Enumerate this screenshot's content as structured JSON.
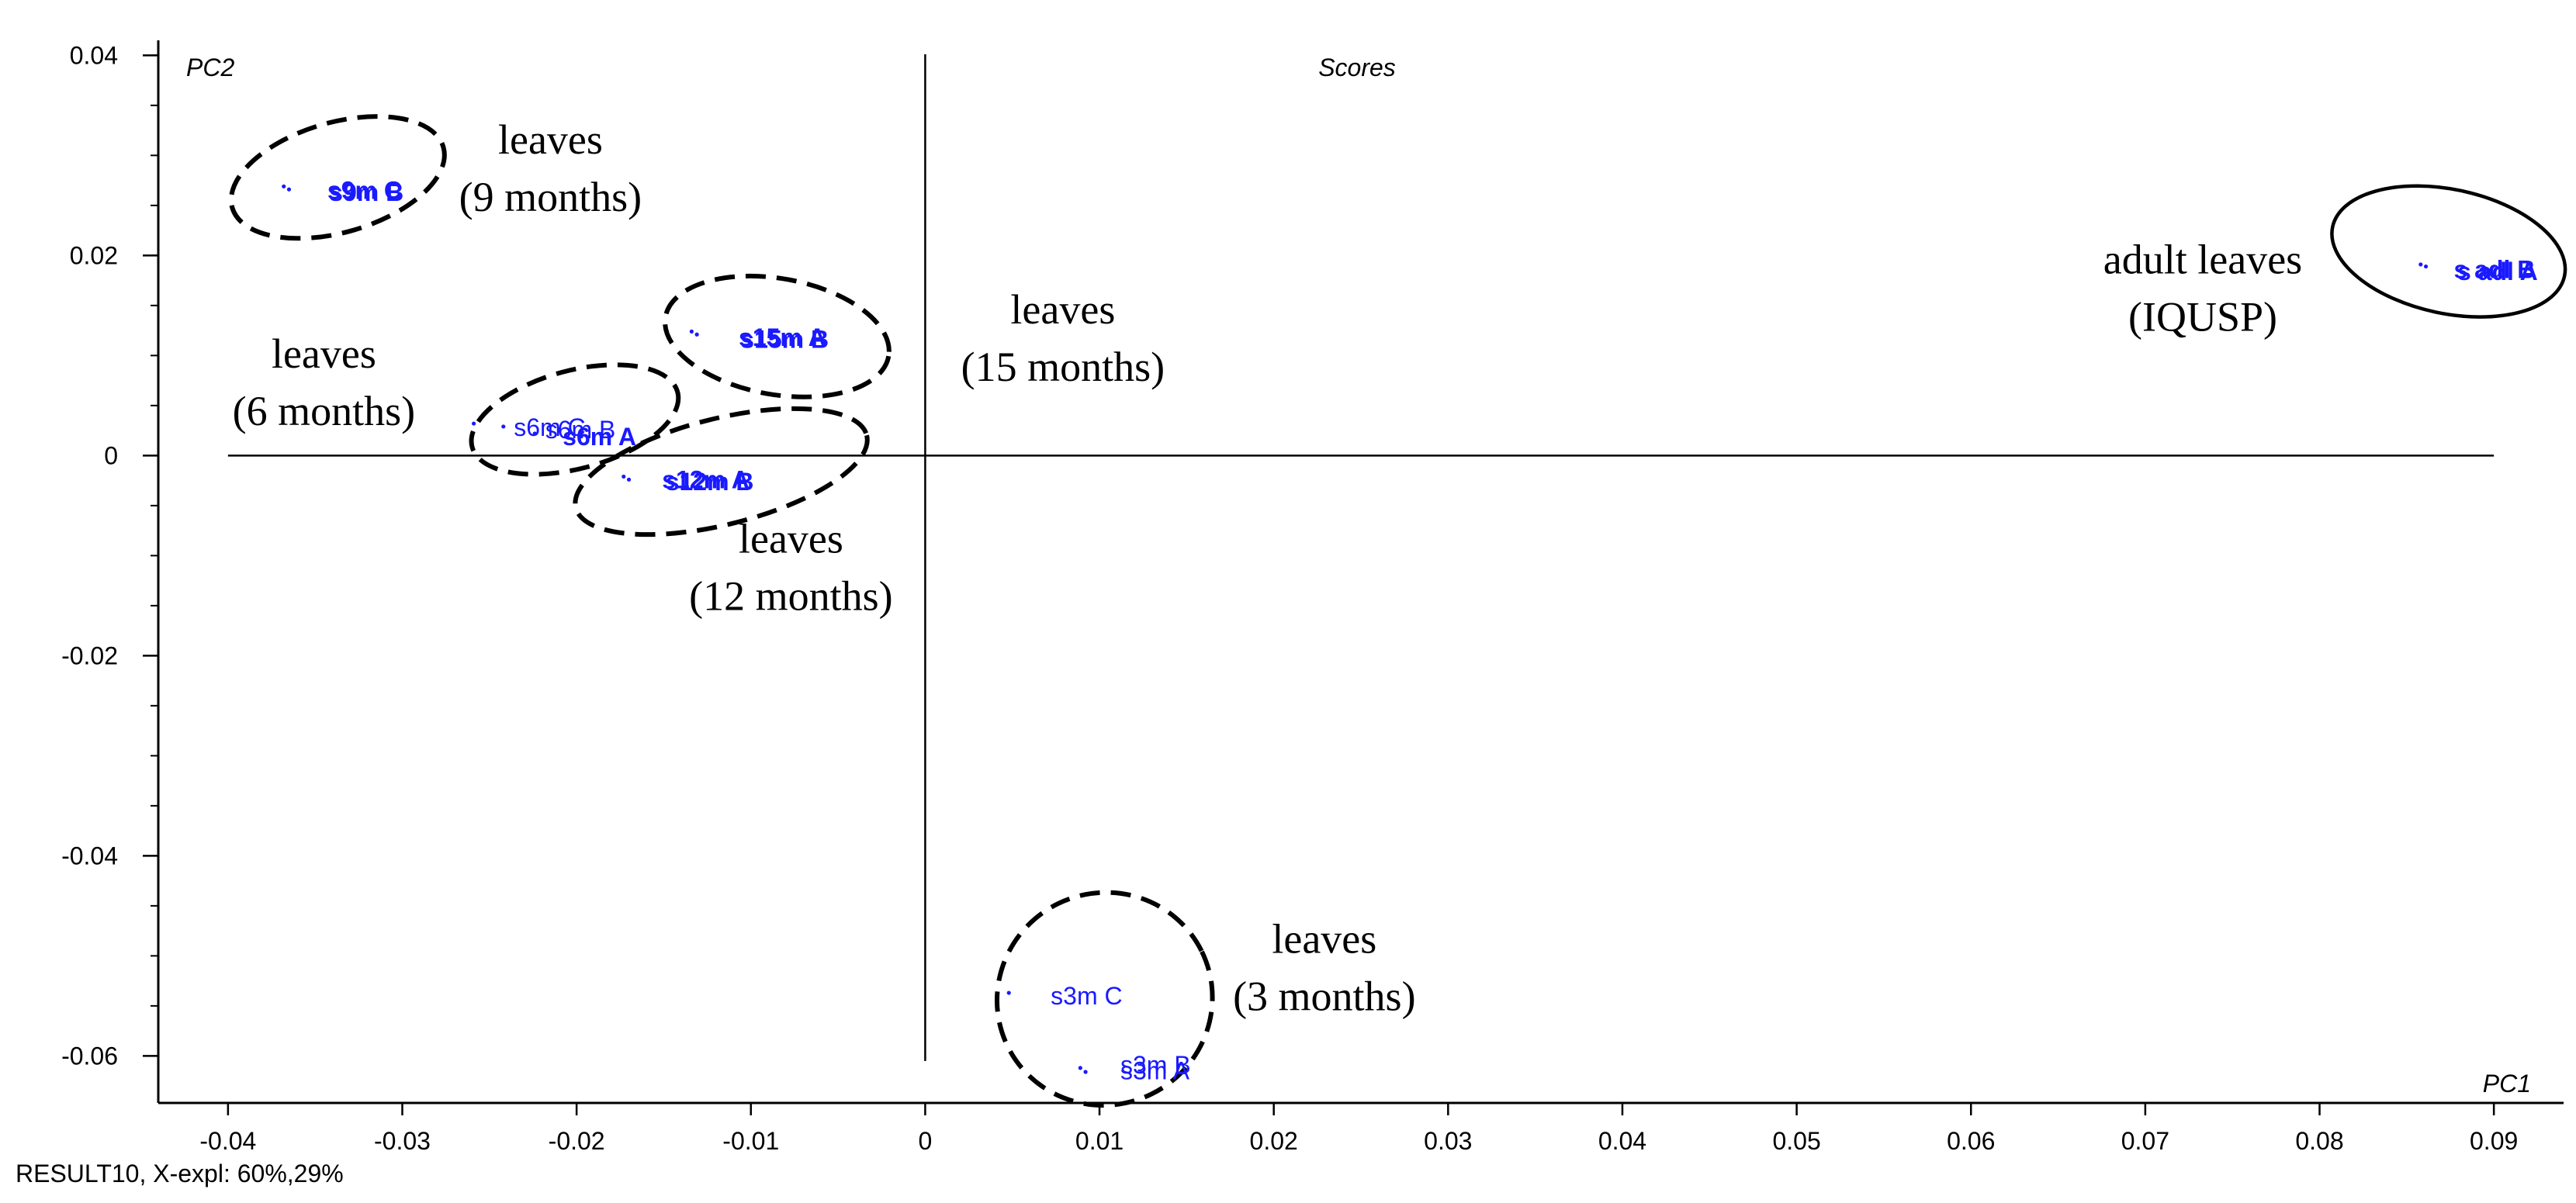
{
  "chart_data": {
    "type": "scatter",
    "title": "Scores",
    "xlabel": "PC1",
    "ylabel": "PC2",
    "footer": "RESULT10, X-expl: 60%,29%",
    "xlim": [
      -0.044,
      0.094
    ],
    "ylim": [
      -0.0647,
      0.0415
    ],
    "xticks": [
      -0.04,
      -0.03,
      -0.02,
      -0.01,
      0,
      0.01,
      0.02,
      0.03,
      0.04,
      0.05,
      0.06,
      0.07,
      0.08,
      0.09
    ],
    "xtick_labels": [
      "-0.04",
      "-0.03",
      "-0.02",
      "-0.01",
      "0",
      "0.01",
      "0.02",
      "0.03",
      "0.04",
      "0.05",
      "0.06",
      "0.07",
      "0.08",
      "0.09"
    ],
    "yticks": [
      0.04,
      0.02,
      0,
      -0.02,
      -0.04,
      -0.06
    ],
    "ytick_labels": [
      "0.04",
      "0.02",
      "0",
      "-0.02",
      "-0.04",
      "-0.06"
    ],
    "y_minor_step": 0.005,
    "zero_lines": {
      "h_x": [
        -0.04,
        0.09
      ],
      "v_y": [
        -0.0605,
        0.0401
      ]
    },
    "points": [
      {
        "label": "s9m C",
        "x": -0.0368,
        "y": 0.0269,
        "lx": -0.0343,
        "ly": 0.0265,
        "bold": true
      },
      {
        "label": "s9m B",
        "x": -0.0365,
        "y": 0.0266,
        "lx": -0.0342,
        "ly": 0.0263,
        "bold": true
      },
      {
        "label": "s15m A",
        "x": -0.0134,
        "y": 0.0124,
        "lx": -0.0107,
        "ly": 0.0118,
        "bold": true
      },
      {
        "label": "s15m B",
        "x": -0.0131,
        "y": 0.0121,
        "lx": -0.0106,
        "ly": 0.0116,
        "bold": true
      },
      {
        "label": "s6m C",
        "x": -0.0259,
        "y": 0.0032,
        "lx": -0.0236,
        "ly": 0.0028,
        "bold": false
      },
      {
        "label": "s6m B",
        "x": -0.0242,
        "y": 0.0029,
        "lx": -0.0218,
        "ly": 0.0026,
        "bold": false
      },
      {
        "label": "s6m A",
        "x": -0.0224,
        "y": 0.0022,
        "lx": -0.0208,
        "ly": 0.0019,
        "bold": true
      },
      {
        "label": "s12m A",
        "x": -0.0173,
        "y": -0.0021,
        "lx": -0.0151,
        "ly": -0.0024,
        "bold": true
      },
      {
        "label": "s12m B",
        "x": -0.017,
        "y": -0.0024,
        "lx": -0.0149,
        "ly": -0.0026,
        "bold": true
      },
      {
        "label": "s3m C",
        "x": 0.0048,
        "y": -0.0537,
        "lx": 0.0072,
        "ly": -0.054,
        "bold": false
      },
      {
        "label": "s3m B",
        "x": 0.0089,
        "y": -0.0612,
        "lx": 0.0112,
        "ly": -0.0609,
        "bold": false
      },
      {
        "label": "s3m A",
        "x": 0.0092,
        "y": -0.0616,
        "lx": 0.0112,
        "ly": -0.0615,
        "bold": false
      },
      {
        "label": "s adl B",
        "x": 0.0858,
        "y": 0.0191,
        "lx": 0.0877,
        "ly": 0.0186,
        "bold": true
      },
      {
        "label": "s adl A",
        "x": 0.0861,
        "y": 0.0189,
        "lx": 0.0879,
        "ly": 0.0184,
        "bold": true
      }
    ],
    "annotations": [
      {
        "lines": [
          "leaves",
          "(9 months)"
        ],
        "x": -0.0215,
        "y": 0.0302
      },
      {
        "lines": [
          "leaves",
          "(6 months)"
        ],
        "x": -0.0345,
        "y": 0.0088
      },
      {
        "lines": [
          "leaves",
          "(15 months)"
        ],
        "x": 0.0079,
        "y": 0.0132
      },
      {
        "lines": [
          "leaves",
          "(12 months)"
        ],
        "x": -0.0077,
        "y": -0.0097
      },
      {
        "lines": [
          "leaves",
          "(3 months)"
        ],
        "x": 0.0229,
        "y": -0.0497
      },
      {
        "lines": [
          "adult leaves",
          "(IQUSP)"
        ],
        "x": 0.0733,
        "y": 0.0182
      }
    ],
    "ellipses": [
      {
        "name": "ellipse-9-months",
        "cx": -0.0337,
        "cy": 0.0278,
        "rx": 0.0063,
        "ry": 0.0055,
        "rot": -16,
        "dashed": true
      },
      {
        "name": "ellipse-15-months",
        "cx": -0.0085,
        "cy": 0.0119,
        "rx": 0.0065,
        "ry": 0.0058,
        "rot": 10,
        "dashed": true
      },
      {
        "name": "ellipse-6-months",
        "cx": -0.0201,
        "cy": 0.0036,
        "rx": 0.0061,
        "ry": 0.0049,
        "rot": -15,
        "dashed": true
      },
      {
        "name": "ellipse-12-months",
        "cx": -0.0117,
        "cy": -0.0016,
        "rx": 0.0086,
        "ry": 0.0053,
        "rot": -14,
        "dashed": true
      },
      {
        "name": "ellipse-3-months",
        "cx": 0.0103,
        "cy": -0.0543,
        "rx": 0.0062,
        "ry": 0.0106,
        "rot": -26,
        "dashed": true
      },
      {
        "name": "ellipse-adult",
        "cx": 0.0874,
        "cy": 0.0204,
        "rx": 0.0068,
        "ry": 0.0062,
        "rot": 12,
        "dashed": false
      }
    ]
  }
}
